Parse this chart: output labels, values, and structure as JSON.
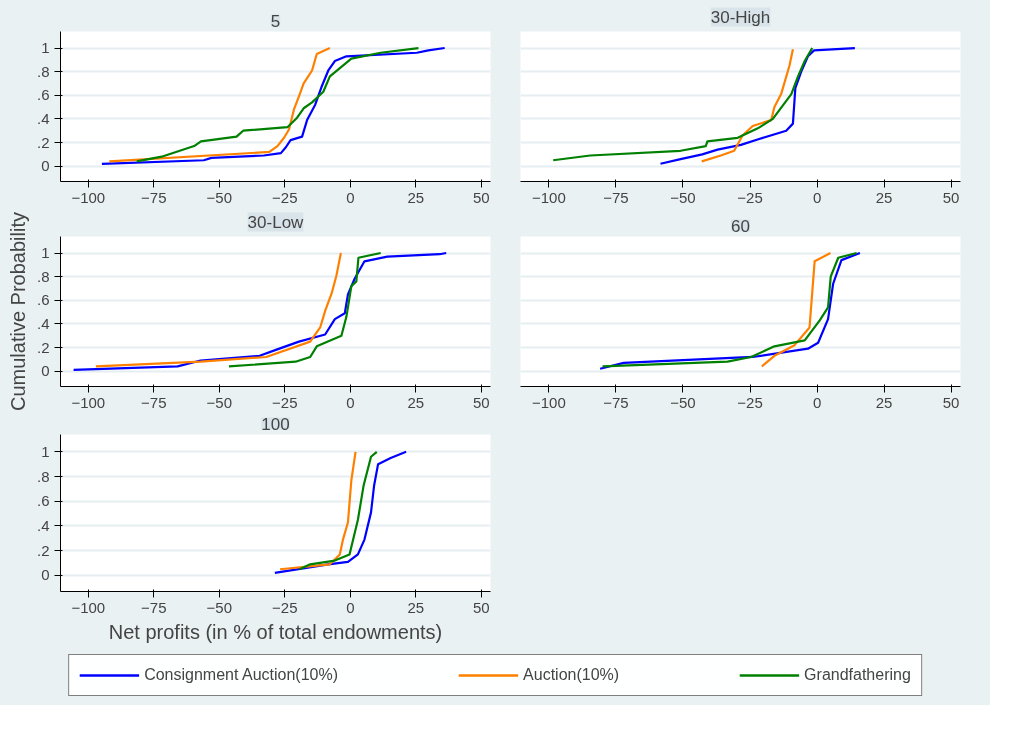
{
  "chart_data": [
    {
      "type": "line",
      "title": "5",
      "xlim": [
        -110.6,
        53.5
      ],
      "ylim": [
        -0.13,
        1.14
      ],
      "xticks": [
        -100,
        -75,
        -50,
        -25,
        0,
        25,
        50
      ],
      "yticks": [
        0,
        {
          "value": 0.2,
          "label": ".2"
        },
        {
          "value": 0.4,
          "label": ".4"
        },
        {
          "value": 0.6,
          "label": ".6"
        },
        {
          "value": 0.8,
          "label": ".8"
        },
        1
      ],
      "grid": "y",
      "legend": "bottom",
      "line_style": "solid",
      "series": [
        {
          "name": "Consignment Auction(10%)",
          "color": "#0000ff",
          "x": [
            -94.8,
            -55.9,
            -53,
            -33,
            -26.5,
            -24.6,
            -22.8,
            -18.4,
            -16.5,
            -13.4,
            -11,
            -8.4,
            -5.9,
            -1.5,
            25.4,
            29.8,
            36
          ],
          "values": [
            0.02,
            0.05,
            0.07,
            0.09,
            0.11,
            0.16,
            0.22,
            0.25,
            0.39,
            0.52,
            0.67,
            0.81,
            0.89,
            0.93,
            0.96,
            0.98,
            1.0
          ]
        },
        {
          "name": "Auction(10%)",
          "color": "#ff8000",
          "x": [
            -92,
            -30.9,
            -27.8,
            -25.3,
            -23.4,
            -21.5,
            -19.6,
            -17.8,
            -14.6,
            -12.8,
            -7.8
          ],
          "values": [
            0.04,
            0.12,
            0.17,
            0.24,
            0.31,
            0.48,
            0.59,
            0.7,
            0.81,
            0.95,
            1.0
          ]
        },
        {
          "name": "Grandfathering",
          "color": "#008000",
          "x": [
            -81.5,
            -72,
            -59.6,
            -57,
            -43.4,
            -40.9,
            -24,
            -20.3,
            -17.8,
            -14.6,
            -10.3,
            -7.8,
            -3.4,
            0.4,
            11.6,
            26
          ],
          "values": [
            0.04,
            0.08,
            0.17,
            0.21,
            0.25,
            0.3,
            0.33,
            0.41,
            0.49,
            0.54,
            0.63,
            0.76,
            0.84,
            0.91,
            0.96,
            1.0
          ]
        }
      ]
    },
    {
      "type": "line",
      "title": "30-High",
      "xlim": [
        -110.6,
        53.5
      ],
      "ylim": [
        -0.13,
        1.14
      ],
      "xticks": [
        -100,
        -75,
        -50,
        -25,
        0,
        25,
        50
      ],
      "yticks": [
        0,
        0.2,
        0.4,
        0.6,
        0.8,
        1
      ],
      "grid": "y",
      "tick_labels": "x",
      "line_style": "solid",
      "series": [
        {
          "color": "#0000ff",
          "x": [
            -58.4,
            -50.9,
            -42.8,
            -37.1,
            -28.4,
            -21.6,
            -11.5,
            -9,
            -8.1,
            -5.9,
            -3.4,
            -1.1,
            14.1
          ],
          "values": [
            0.02,
            0.06,
            0.1,
            0.14,
            0.18,
            0.23,
            0.3,
            0.36,
            0.66,
            0.8,
            0.93,
            0.98,
            1.0
          ]
        },
        {
          "color": "#ff8000",
          "x": [
            -43,
            -35.9,
            -30.9,
            -27.8,
            -24,
            -17.1,
            -15.9,
            -13.4,
            -10.3,
            -9
          ],
          "values": [
            0.04,
            0.09,
            0.13,
            0.26,
            0.34,
            0.39,
            0.5,
            0.61,
            0.85,
            0.99
          ]
        },
        {
          "color": "#008000",
          "x": [
            -98.4,
            -84.6,
            -50.9,
            -41.5,
            -40.9,
            -29.6,
            -22.1,
            -16.5,
            -9.6,
            -7.1,
            -4.6,
            -1.8
          ],
          "values": [
            0.05,
            0.09,
            0.13,
            0.17,
            0.21,
            0.24,
            0.32,
            0.4,
            0.61,
            0.76,
            0.89,
            1.0
          ]
        }
      ]
    },
    {
      "type": "line",
      "title": "30-Low",
      "ylabel": "Cumulative Probability",
      "xlim": [
        -110.6,
        53.5
      ],
      "ylim": [
        -0.13,
        1.14
      ],
      "xticks": [
        -100,
        -75,
        -50,
        -25,
        0,
        25,
        50
      ],
      "yticks": [
        0,
        {
          "value": 0.2,
          "label": ".2"
        },
        {
          "value": 0.4,
          "label": ".4"
        },
        {
          "value": 0.6,
          "label": ".6"
        },
        {
          "value": 0.8,
          "label": ".8"
        },
        1
      ],
      "grid": "y",
      "line_style": "solid",
      "series": [
        {
          "color": "#0000ff",
          "x": [
            -105.6,
            -65.9,
            -57.1,
            -34.6,
            -28.4,
            -19.6,
            -9.6,
            -5.9,
            -2.1,
            -0.9,
            1.6,
            5.4,
            14.1,
            34.1,
            36.6
          ],
          "values": [
            0.01,
            0.04,
            0.09,
            0.13,
            0.18,
            0.25,
            0.31,
            0.44,
            0.49,
            0.65,
            0.78,
            0.93,
            0.97,
            0.99,
            1.0
          ]
        },
        {
          "color": "#ff8000",
          "x": [
            -97.1,
            -57.1,
            -32.1,
            -15.3,
            -11.5,
            -9.6,
            -7.1,
            -5.3,
            -3.6
          ],
          "values": [
            0.04,
            0.08,
            0.12,
            0.25,
            0.37,
            0.51,
            0.66,
            0.81,
            1.0
          ]
        },
        {
          "color": "#008000",
          "x": [
            -46.3,
            -20.9,
            -15.3,
            -12.8,
            -3.4,
            -1.5,
            0.4,
            2.3,
            3.1,
            11.6
          ],
          "values": [
            0.04,
            0.08,
            0.12,
            0.21,
            0.3,
            0.46,
            0.72,
            0.76,
            0.96,
            1.0
          ]
        }
      ]
    },
    {
      "type": "line",
      "title": "60",
      "xlim": [
        -110.6,
        53.5
      ],
      "ylim": [
        -0.13,
        1.14
      ],
      "xticks": [
        -100,
        -75,
        -50,
        -25,
        0,
        25,
        50
      ],
      "yticks": [
        0,
        0.2,
        0.4,
        0.6,
        0.8,
        1
      ],
      "grid": "y",
      "tick_labels": "x",
      "line_style": "solid",
      "series": [
        {
          "color": "#0000ff",
          "x": [
            -80.9,
            -72.1,
            -24,
            -3.4,
            0.4,
            4.1,
            6,
            9.1,
            16
          ],
          "values": [
            0.02,
            0.07,
            0.12,
            0.19,
            0.24,
            0.44,
            0.74,
            0.94,
            1.0
          ]
        },
        {
          "color": "#ff8000",
          "x": [
            -20.6,
            -15.9,
            -8.4,
            -2.8,
            -0.9,
            5
          ],
          "values": [
            0.04,
            0.13,
            0.22,
            0.37,
            0.93,
            1.0
          ]
        },
        {
          "color": "#008000",
          "x": [
            -80,
            -33.4,
            -24.6,
            -15.9,
            -4.6,
            1,
            4.1,
            5.1,
            7.9,
            14.8
          ],
          "values": [
            0.04,
            0.08,
            0.12,
            0.21,
            0.26,
            0.43,
            0.54,
            0.8,
            0.96,
            1.0
          ]
        }
      ]
    },
    {
      "type": "line",
      "title": "100",
      "xlabel": "Net profits (in % of total endowments)",
      "xlim": [
        -110.6,
        53.5
      ],
      "ylim": [
        -0.13,
        1.14
      ],
      "xticks": [
        -100,
        -75,
        -50,
        -25,
        0,
        25,
        50
      ],
      "yticks": [
        0,
        {
          "value": 0.2,
          "label": ".2"
        },
        {
          "value": 0.4,
          "label": ".4"
        },
        {
          "value": 0.6,
          "label": ".6"
        },
        {
          "value": 0.8,
          "label": ".8"
        },
        1
      ],
      "grid": "y",
      "line_style": "solid",
      "series": [
        {
          "color": "#0000ff",
          "x": [
            -28.8,
            -8.4,
            -0.9,
            2.9,
            5.4,
            7.9,
            9.1,
            10.6,
            15.4,
            21.3
          ],
          "values": [
            0.02,
            0.09,
            0.11,
            0.17,
            0.29,
            0.51,
            0.73,
            0.9,
            0.95,
            1.0
          ]
        },
        {
          "color": "#ff8000",
          "x": [
            -26.8,
            -7.8,
            -4,
            -2.8,
            -0.9,
            0.4,
            2
          ],
          "values": [
            0.05,
            0.09,
            0.17,
            0.29,
            0.43,
            0.77,
            1.0
          ]
        },
        {
          "color": "#008000",
          "x": [
            -19.4,
            -15.3,
            -5.9,
            -0.3,
            2.9,
            5.1,
            7.9,
            10.1
          ],
          "values": [
            0.05,
            0.09,
            0.12,
            0.17,
            0.45,
            0.73,
            0.96,
            1.0
          ]
        }
      ]
    }
  ]
}
